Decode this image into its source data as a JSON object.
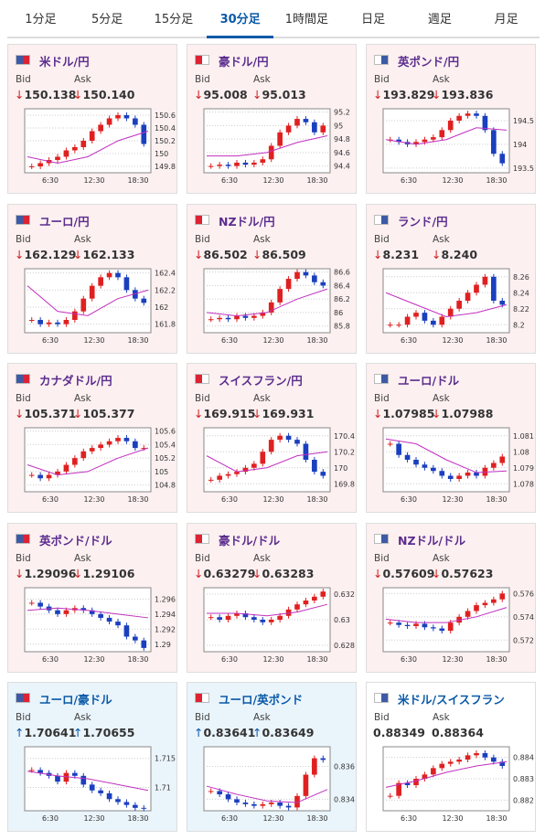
{
  "tabs": [
    "1分足",
    "5分足",
    "15分足",
    "30分足",
    "1時間足",
    "日足",
    "週足",
    "月足"
  ],
  "active_tab": 3,
  "bid_label": "Bid",
  "ask_label": "Ask",
  "x_labels": [
    "6:30",
    "12:30",
    "18:30"
  ],
  "cards": [
    {
      "name": "米ドル/円",
      "arrow": "↓",
      "bid": "150.138",
      "ask": "150.140",
      "ylim": [
        149.7,
        150.7
      ],
      "yticks": [
        149.8,
        150,
        150.2,
        150.4,
        150.6
      ],
      "closes": [
        149.8,
        149.85,
        149.9,
        149.95,
        150.05,
        150.1,
        150.2,
        150.35,
        150.45,
        150.55,
        150.6,
        150.55,
        150.45,
        150.15
      ],
      "ma": [
        149.95,
        149.85,
        149.95,
        150.2,
        150.35
      ]
    },
    {
      "name": "豪ドル/円",
      "arrow": "↓",
      "bid": "95.008",
      "ask": "95.013",
      "ylim": [
        94.3,
        95.25
      ],
      "yticks": [
        94.4,
        94.6,
        94.8,
        95,
        95.2
      ],
      "closes": [
        94.4,
        94.42,
        94.4,
        94.45,
        94.42,
        94.45,
        94.5,
        94.7,
        94.9,
        95.0,
        95.1,
        95.05,
        94.9,
        95.0
      ],
      "ma": [
        94.55,
        94.55,
        94.6,
        94.75,
        94.85
      ]
    },
    {
      "name": "英ポンド/円",
      "arrow": "↓",
      "bid": "193.829",
      "ask": "193.836",
      "ylim": [
        193.4,
        194.75
      ],
      "yticks": [
        193.5,
        194,
        194.5
      ],
      "closes": [
        194.1,
        194.05,
        194.0,
        194.05,
        194.1,
        194.15,
        194.3,
        194.5,
        194.6,
        194.65,
        194.6,
        194.3,
        193.8,
        193.6
      ],
      "ma": [
        194.1,
        194.0,
        194.1,
        194.35,
        194.3
      ]
    },
    {
      "name": "ユーロ/円",
      "arrow": "↓",
      "bid": "162.129",
      "ask": "162.133",
      "ylim": [
        161.7,
        162.45
      ],
      "yticks": [
        161.8,
        162,
        162.2,
        162.4
      ],
      "closes": [
        161.85,
        161.8,
        161.82,
        161.8,
        161.85,
        161.95,
        162.1,
        162.25,
        162.35,
        162.4,
        162.35,
        162.2,
        162.1,
        162.05
      ],
      "ma": [
        162.25,
        161.95,
        161.9,
        162.1,
        162.2
      ]
    },
    {
      "name": "NZドル/円",
      "arrow": "↓",
      "bid": "86.502",
      "ask": "86.509",
      "ylim": [
        85.7,
        86.65
      ],
      "yticks": [
        85.8,
        86,
        86.2,
        86.4,
        86.6
      ],
      "closes": [
        85.9,
        85.92,
        85.9,
        85.95,
        85.92,
        85.95,
        86.0,
        86.15,
        86.35,
        86.5,
        86.6,
        86.55,
        86.45,
        86.4
      ],
      "ma": [
        86.0,
        85.95,
        86.0,
        86.2,
        86.35
      ]
    },
    {
      "name": "ランド/円",
      "arrow": "↓",
      "bid": "8.231",
      "ask": "8.240",
      "ylim": [
        8.19,
        8.27
      ],
      "yticks": [
        8.2,
        8.22,
        8.24,
        8.26
      ],
      "closes": [
        8.2,
        8.2,
        8.21,
        8.215,
        8.205,
        8.2,
        8.21,
        8.22,
        8.23,
        8.24,
        8.25,
        8.26,
        8.23,
        8.225
      ],
      "ma": [
        8.24,
        8.225,
        8.21,
        8.215,
        8.225
      ]
    },
    {
      "name": "カナダドル/円",
      "arrow": "↓",
      "bid": "105.371",
      "ask": "105.377",
      "ylim": [
        104.7,
        105.65
      ],
      "yticks": [
        104.8,
        105,
        105.2,
        105.4,
        105.6
      ],
      "closes": [
        104.95,
        104.9,
        104.95,
        105.0,
        105.1,
        105.2,
        105.3,
        105.35,
        105.4,
        105.45,
        105.5,
        105.45,
        105.35,
        105.35
      ],
      "ma": [
        105.1,
        104.95,
        105.0,
        105.2,
        105.35
      ]
    },
    {
      "name": "スイスフラン/円",
      "arrow": "↓",
      "bid": "169.915",
      "ask": "169.931",
      "ylim": [
        169.7,
        170.5
      ],
      "yticks": [
        169.8,
        170,
        170.2,
        170.4
      ],
      "closes": [
        169.85,
        169.9,
        169.92,
        169.95,
        170.0,
        170.05,
        170.2,
        170.35,
        170.4,
        170.35,
        170.3,
        170.1,
        169.95,
        169.9
      ],
      "ma": [
        170.15,
        169.95,
        170.0,
        170.15,
        170.2
      ]
    },
    {
      "name": "ユーロ/ドル",
      "arrow": "↓",
      "bid": "1.07985",
      "ask": "1.07988",
      "ylim": [
        1.0775,
        1.0815
      ],
      "yticks": [
        1.078,
        1.079,
        1.08,
        1.081
      ],
      "closes": [
        1.0805,
        1.0798,
        1.0795,
        1.0792,
        1.079,
        1.0788,
        1.0785,
        1.0783,
        1.0785,
        1.0787,
        1.0785,
        1.079,
        1.0793,
        1.0797
      ],
      "ma": [
        1.0808,
        1.0805,
        1.0795,
        1.0787,
        1.0788
      ]
    },
    {
      "name": "英ポンド/ドル",
      "arrow": "↓",
      "bid": "1.29096",
      "ask": "1.29106",
      "ylim": [
        1.289,
        1.2975
      ],
      "yticks": [
        1.29,
        1.292,
        1.294,
        1.296
      ],
      "closes": [
        1.2955,
        1.295,
        1.2945,
        1.294,
        1.2945,
        1.2948,
        1.2945,
        1.294,
        1.2935,
        1.293,
        1.2925,
        1.291,
        1.2905,
        1.2895
      ],
      "ma": [
        1.2945,
        1.2948,
        1.2945,
        1.294,
        1.2935
      ]
    },
    {
      "name": "豪ドル/ドル",
      "arrow": "↓",
      "bid": "0.63279",
      "ask": "0.63283",
      "ylim": [
        0.6275,
        0.6325
      ],
      "yticks": [
        0.628,
        0.63,
        0.632
      ],
      "closes": [
        0.6302,
        0.63,
        0.6303,
        0.6305,
        0.6302,
        0.63,
        0.6298,
        0.63,
        0.6303,
        0.6308,
        0.6312,
        0.6315,
        0.6318,
        0.6322
      ],
      "ma": [
        0.6305,
        0.6305,
        0.6303,
        0.6306,
        0.6312
      ]
    },
    {
      "name": "NZドル/ドル",
      "arrow": "↓",
      "bid": "0.57609",
      "ask": "0.57623",
      "ylim": [
        0.571,
        0.5765
      ],
      "yticks": [
        0.572,
        0.574,
        0.576
      ],
      "closes": [
        0.5735,
        0.5733,
        0.5732,
        0.5734,
        0.5731,
        0.573,
        0.5728,
        0.5735,
        0.574,
        0.5745,
        0.575,
        0.5752,
        0.5755,
        0.576
      ],
      "ma": [
        0.5738,
        0.5735,
        0.5735,
        0.574,
        0.5748
      ]
    },
    {
      "name": "ユーロ/豪ドル",
      "arrow": "↑",
      "bid": "1.70641",
      "ask": "1.70655",
      "ylim": [
        1.706,
        1.717
      ],
      "yticks": [
        1.71,
        1.715
      ],
      "closes": [
        1.713,
        1.7125,
        1.712,
        1.711,
        1.7125,
        1.712,
        1.7105,
        1.7095,
        1.709,
        1.708,
        1.7075,
        1.707,
        1.7065,
        1.7064
      ],
      "ma": [
        1.7128,
        1.712,
        1.7115,
        1.7105,
        1.7095
      ]
    },
    {
      "name": "ユーロ/英ポンド",
      "arrow": "↑",
      "bid": "0.83641",
      "ask": "0.83649",
      "ylim": [
        0.8333,
        0.8372
      ],
      "yticks": [
        0.834,
        0.836
      ],
      "closes": [
        0.8345,
        0.8343,
        0.834,
        0.8338,
        0.8337,
        0.8336,
        0.8337,
        0.8338,
        0.8336,
        0.8335,
        0.8342,
        0.8355,
        0.8365,
        0.8364
      ],
      "ma": [
        0.8348,
        0.8343,
        0.8339,
        0.8338,
        0.8346
      ]
    },
    {
      "name": "米ドル/スイスフラン",
      "bid": "0.88349",
      "ask": "0.88364",
      "ylim": [
        0.8815,
        0.8845
      ],
      "yticks": [
        0.882,
        0.883,
        0.884
      ],
      "closes": [
        0.8822,
        0.8828,
        0.8827,
        0.883,
        0.8832,
        0.8835,
        0.8837,
        0.8838,
        0.8839,
        0.8841,
        0.8842,
        0.884,
        0.8838,
        0.8836
      ],
      "ma": [
        0.8826,
        0.8829,
        0.8833,
        0.8836,
        0.8838
      ]
    }
  ]
}
